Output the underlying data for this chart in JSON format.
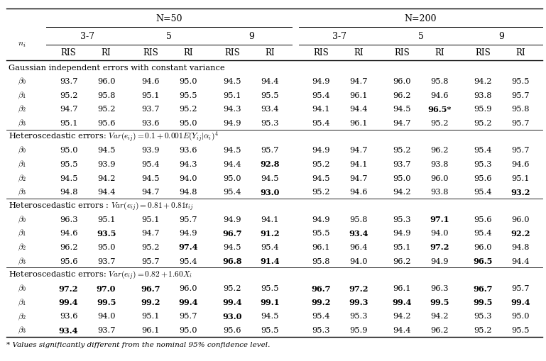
{
  "sections": [
    {
      "header": "Gaussian independent errors with constant variance",
      "header_math": false,
      "rows": [
        {
          "label": "0",
          "values": [
            "93.7",
            "96.0",
            "94.6",
            "95.0",
            "94.5",
            "94.4",
            "94.9",
            "94.7",
            "96.0",
            "95.8",
            "94.2",
            "95.5"
          ],
          "bold": [
            false,
            false,
            false,
            false,
            false,
            false,
            false,
            false,
            false,
            false,
            false,
            false
          ]
        },
        {
          "label": "1",
          "values": [
            "95.2",
            "95.8",
            "95.1",
            "95.5",
            "95.1",
            "95.5",
            "95.4",
            "96.1",
            "96.2",
            "94.6",
            "93.8",
            "95.7"
          ],
          "bold": [
            false,
            false,
            false,
            false,
            false,
            false,
            false,
            false,
            false,
            false,
            false,
            false
          ]
        },
        {
          "label": "2",
          "values": [
            "94.7",
            "95.2",
            "93.7",
            "95.2",
            "94.3",
            "93.4",
            "94.1",
            "94.4",
            "94.5",
            "96.5*",
            "95.9",
            "95.8"
          ],
          "bold": [
            false,
            false,
            false,
            false,
            false,
            false,
            false,
            false,
            false,
            true,
            false,
            false
          ]
        },
        {
          "label": "3",
          "values": [
            "95.1",
            "95.6",
            "93.6",
            "95.0",
            "94.9",
            "95.3",
            "95.4",
            "96.1",
            "94.7",
            "95.2",
            "95.2",
            "95.7"
          ],
          "bold": [
            false,
            false,
            false,
            false,
            false,
            false,
            false,
            false,
            false,
            false,
            false,
            false
          ]
        }
      ]
    },
    {
      "header": "Heteroscedastic errors: $Var(e_{ij}) = 0.1 + 0.001E(Y_{ij}|\\alpha_i)^4$",
      "header_math": true,
      "rows": [
        {
          "label": "0",
          "values": [
            "95.0",
            "94.5",
            "93.9",
            "93.6",
            "94.5",
            "95.7",
            "94.9",
            "94.7",
            "95.2",
            "96.2",
            "95.4",
            "95.7"
          ],
          "bold": [
            false,
            false,
            false,
            false,
            false,
            false,
            false,
            false,
            false,
            false,
            false,
            false
          ]
        },
        {
          "label": "1",
          "values": [
            "95.5",
            "93.9",
            "95.4",
            "94.3",
            "94.4",
            "92.8",
            "95.2",
            "94.1",
            "93.7",
            "93.8",
            "95.3",
            "94.6"
          ],
          "bold": [
            false,
            false,
            false,
            false,
            false,
            true,
            false,
            false,
            false,
            false,
            false,
            false
          ]
        },
        {
          "label": "2",
          "values": [
            "94.5",
            "94.2",
            "94.5",
            "94.0",
            "95.0",
            "94.5",
            "94.5",
            "94.7",
            "95.0",
            "96.0",
            "95.6",
            "95.1"
          ],
          "bold": [
            false,
            false,
            false,
            false,
            false,
            false,
            false,
            false,
            false,
            false,
            false,
            false
          ]
        },
        {
          "label": "3",
          "values": [
            "94.8",
            "94.4",
            "94.7",
            "94.8",
            "95.4",
            "93.0",
            "95.2",
            "94.6",
            "94.2",
            "93.8",
            "95.4",
            "93.2"
          ],
          "bold": [
            false,
            false,
            false,
            false,
            false,
            true,
            false,
            false,
            false,
            false,
            false,
            true
          ]
        }
      ]
    },
    {
      "header": "Heteroscedastic errors : $Var(e_{ij}) = 0.81 + 0.81t_{ij}$",
      "header_math": true,
      "rows": [
        {
          "label": "0",
          "values": [
            "96.3",
            "95.1",
            "95.1",
            "95.7",
            "94.9",
            "94.1",
            "94.9",
            "95.8",
            "95.3",
            "97.1",
            "95.6",
            "96.0"
          ],
          "bold": [
            false,
            false,
            false,
            false,
            false,
            false,
            false,
            false,
            false,
            true,
            false,
            false
          ]
        },
        {
          "label": "1",
          "values": [
            "94.6",
            "93.5",
            "94.7",
            "94.9",
            "96.7",
            "91.2",
            "95.5",
            "93.4",
            "94.9",
            "94.0",
            "95.4",
            "92.2"
          ],
          "bold": [
            false,
            true,
            false,
            false,
            true,
            true,
            false,
            true,
            false,
            false,
            false,
            true
          ]
        },
        {
          "label": "2",
          "values": [
            "96.2",
            "95.0",
            "95.2",
            "97.4",
            "94.5",
            "95.4",
            "96.1",
            "96.4",
            "95.1",
            "97.2",
            "96.0",
            "94.8"
          ],
          "bold": [
            false,
            false,
            false,
            true,
            false,
            false,
            false,
            false,
            false,
            true,
            false,
            false
          ]
        },
        {
          "label": "3",
          "values": [
            "95.6",
            "93.7",
            "95.7",
            "95.4",
            "96.8",
            "91.4",
            "95.8",
            "94.0",
            "96.2",
            "94.9",
            "96.5",
            "94.4"
          ],
          "bold": [
            false,
            false,
            false,
            false,
            true,
            true,
            false,
            false,
            false,
            false,
            true,
            false
          ]
        }
      ]
    },
    {
      "header": "Heteroscedastic errors: $Var(e_{ij}) = 0.82 + 1.60X_i$",
      "header_math": true,
      "rows": [
        {
          "label": "0",
          "values": [
            "97.2",
            "97.0",
            "96.7",
            "96.0",
            "95.2",
            "95.5",
            "96.7",
            "97.2",
            "96.1",
            "96.3",
            "96.7",
            "95.7"
          ],
          "bold": [
            true,
            true,
            true,
            false,
            false,
            false,
            true,
            true,
            false,
            false,
            true,
            false
          ]
        },
        {
          "label": "1",
          "values": [
            "99.4",
            "99.5",
            "99.2",
            "99.4",
            "99.4",
            "99.1",
            "99.2",
            "99.3",
            "99.4",
            "99.5",
            "99.5",
            "99.4"
          ],
          "bold": [
            true,
            true,
            true,
            true,
            true,
            true,
            true,
            true,
            true,
            true,
            true,
            true
          ]
        },
        {
          "label": "2",
          "values": [
            "93.6",
            "94.0",
            "95.1",
            "95.7",
            "93.0",
            "94.5",
            "95.4",
            "95.3",
            "94.2",
            "94.2",
            "95.3",
            "95.0"
          ],
          "bold": [
            false,
            false,
            false,
            false,
            true,
            false,
            false,
            false,
            false,
            false,
            false,
            false
          ]
        },
        {
          "label": "3",
          "values": [
            "93.4",
            "93.7",
            "96.1",
            "95.0",
            "95.6",
            "95.5",
            "95.3",
            "95.9",
            "94.4",
            "96.2",
            "95.2",
            "95.5"
          ],
          "bold": [
            true,
            false,
            false,
            false,
            false,
            false,
            false,
            false,
            false,
            false,
            false,
            false
          ]
        }
      ]
    }
  ],
  "footnote": "* Values significantly different from the nominal 95% confidence level.",
  "figwidth": 7.69,
  "figheight": 5.1,
  "dpi": 100
}
